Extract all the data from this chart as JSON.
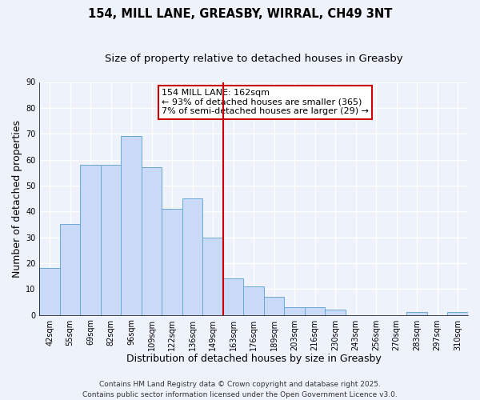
{
  "title": "154, MILL LANE, GREASBY, WIRRAL, CH49 3NT",
  "subtitle": "Size of property relative to detached houses in Greasby",
  "xlabel": "Distribution of detached houses by size in Greasby",
  "ylabel": "Number of detached properties",
  "bin_labels": [
    "42sqm",
    "55sqm",
    "69sqm",
    "82sqm",
    "96sqm",
    "109sqm",
    "122sqm",
    "136sqm",
    "149sqm",
    "163sqm",
    "176sqm",
    "189sqm",
    "203sqm",
    "216sqm",
    "230sqm",
    "243sqm",
    "256sqm",
    "270sqm",
    "283sqm",
    "297sqm",
    "310sqm"
  ],
  "bar_values": [
    18,
    35,
    58,
    58,
    69,
    57,
    41,
    45,
    30,
    14,
    11,
    7,
    3,
    3,
    2,
    0,
    0,
    0,
    1,
    0,
    1
  ],
  "bar_color": "#c9daf8",
  "bar_edge_color": "#6aa9d8",
  "background_color": "#eef2fb",
  "grid_color": "#ffffff",
  "vline_x_index": 9,
  "vline_color": "#cc0000",
  "annotation_line1": "154 MILL LANE: 162sqm",
  "annotation_line2": "← 93% of detached houses are smaller (365)",
  "annotation_line3": "7% of semi-detached houses are larger (29) →",
  "annotation_box_color": "#ffffff",
  "annotation_box_edge": "#cc0000",
  "ylim": [
    0,
    90
  ],
  "yticks": [
    0,
    10,
    20,
    30,
    40,
    50,
    60,
    70,
    80,
    90
  ],
  "footer_line1": "Contains HM Land Registry data © Crown copyright and database right 2025.",
  "footer_line2": "Contains public sector information licensed under the Open Government Licence v3.0.",
  "title_fontsize": 10.5,
  "subtitle_fontsize": 9.5,
  "xlabel_fontsize": 9,
  "ylabel_fontsize": 9,
  "tick_fontsize": 7,
  "annotation_fontsize": 8,
  "footer_fontsize": 6.5
}
